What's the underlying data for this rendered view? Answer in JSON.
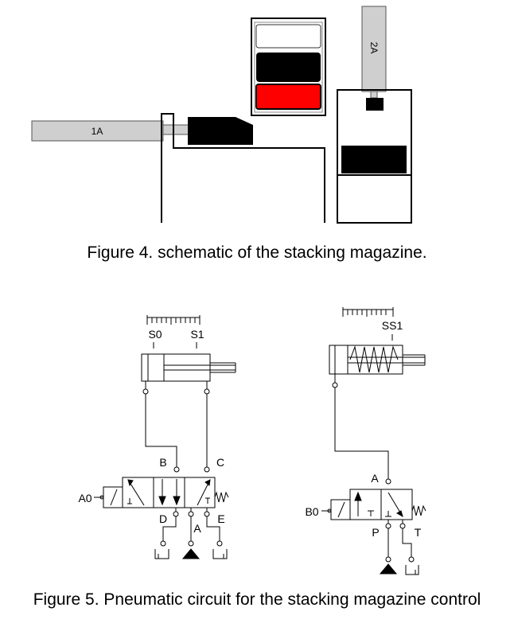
{
  "figure4": {
    "caption": "Figure 4. schematic of the stacking magazine.",
    "cylinder_1_label": "1A",
    "cylinder_2_label": "2A"
  },
  "figure5": {
    "caption": "Figure 5. Pneumatic circuit for the stacking magazine control",
    "circuit_a": {
      "sensor_start": "S0",
      "sensor_end": "S1",
      "solenoid": "A0",
      "port_b": "B",
      "port_c": "C",
      "port_d": "D",
      "port_a": "A",
      "port_e": "E"
    },
    "circuit_b": {
      "sensor": "SS1",
      "solenoid": "B0",
      "port_a": "A",
      "port_p": "P",
      "port_t": "T"
    }
  },
  "colors": {
    "line": "#000000",
    "rod_gray": "#cfcfcf",
    "block_black": "#000000",
    "block_red": "#ff0000"
  }
}
